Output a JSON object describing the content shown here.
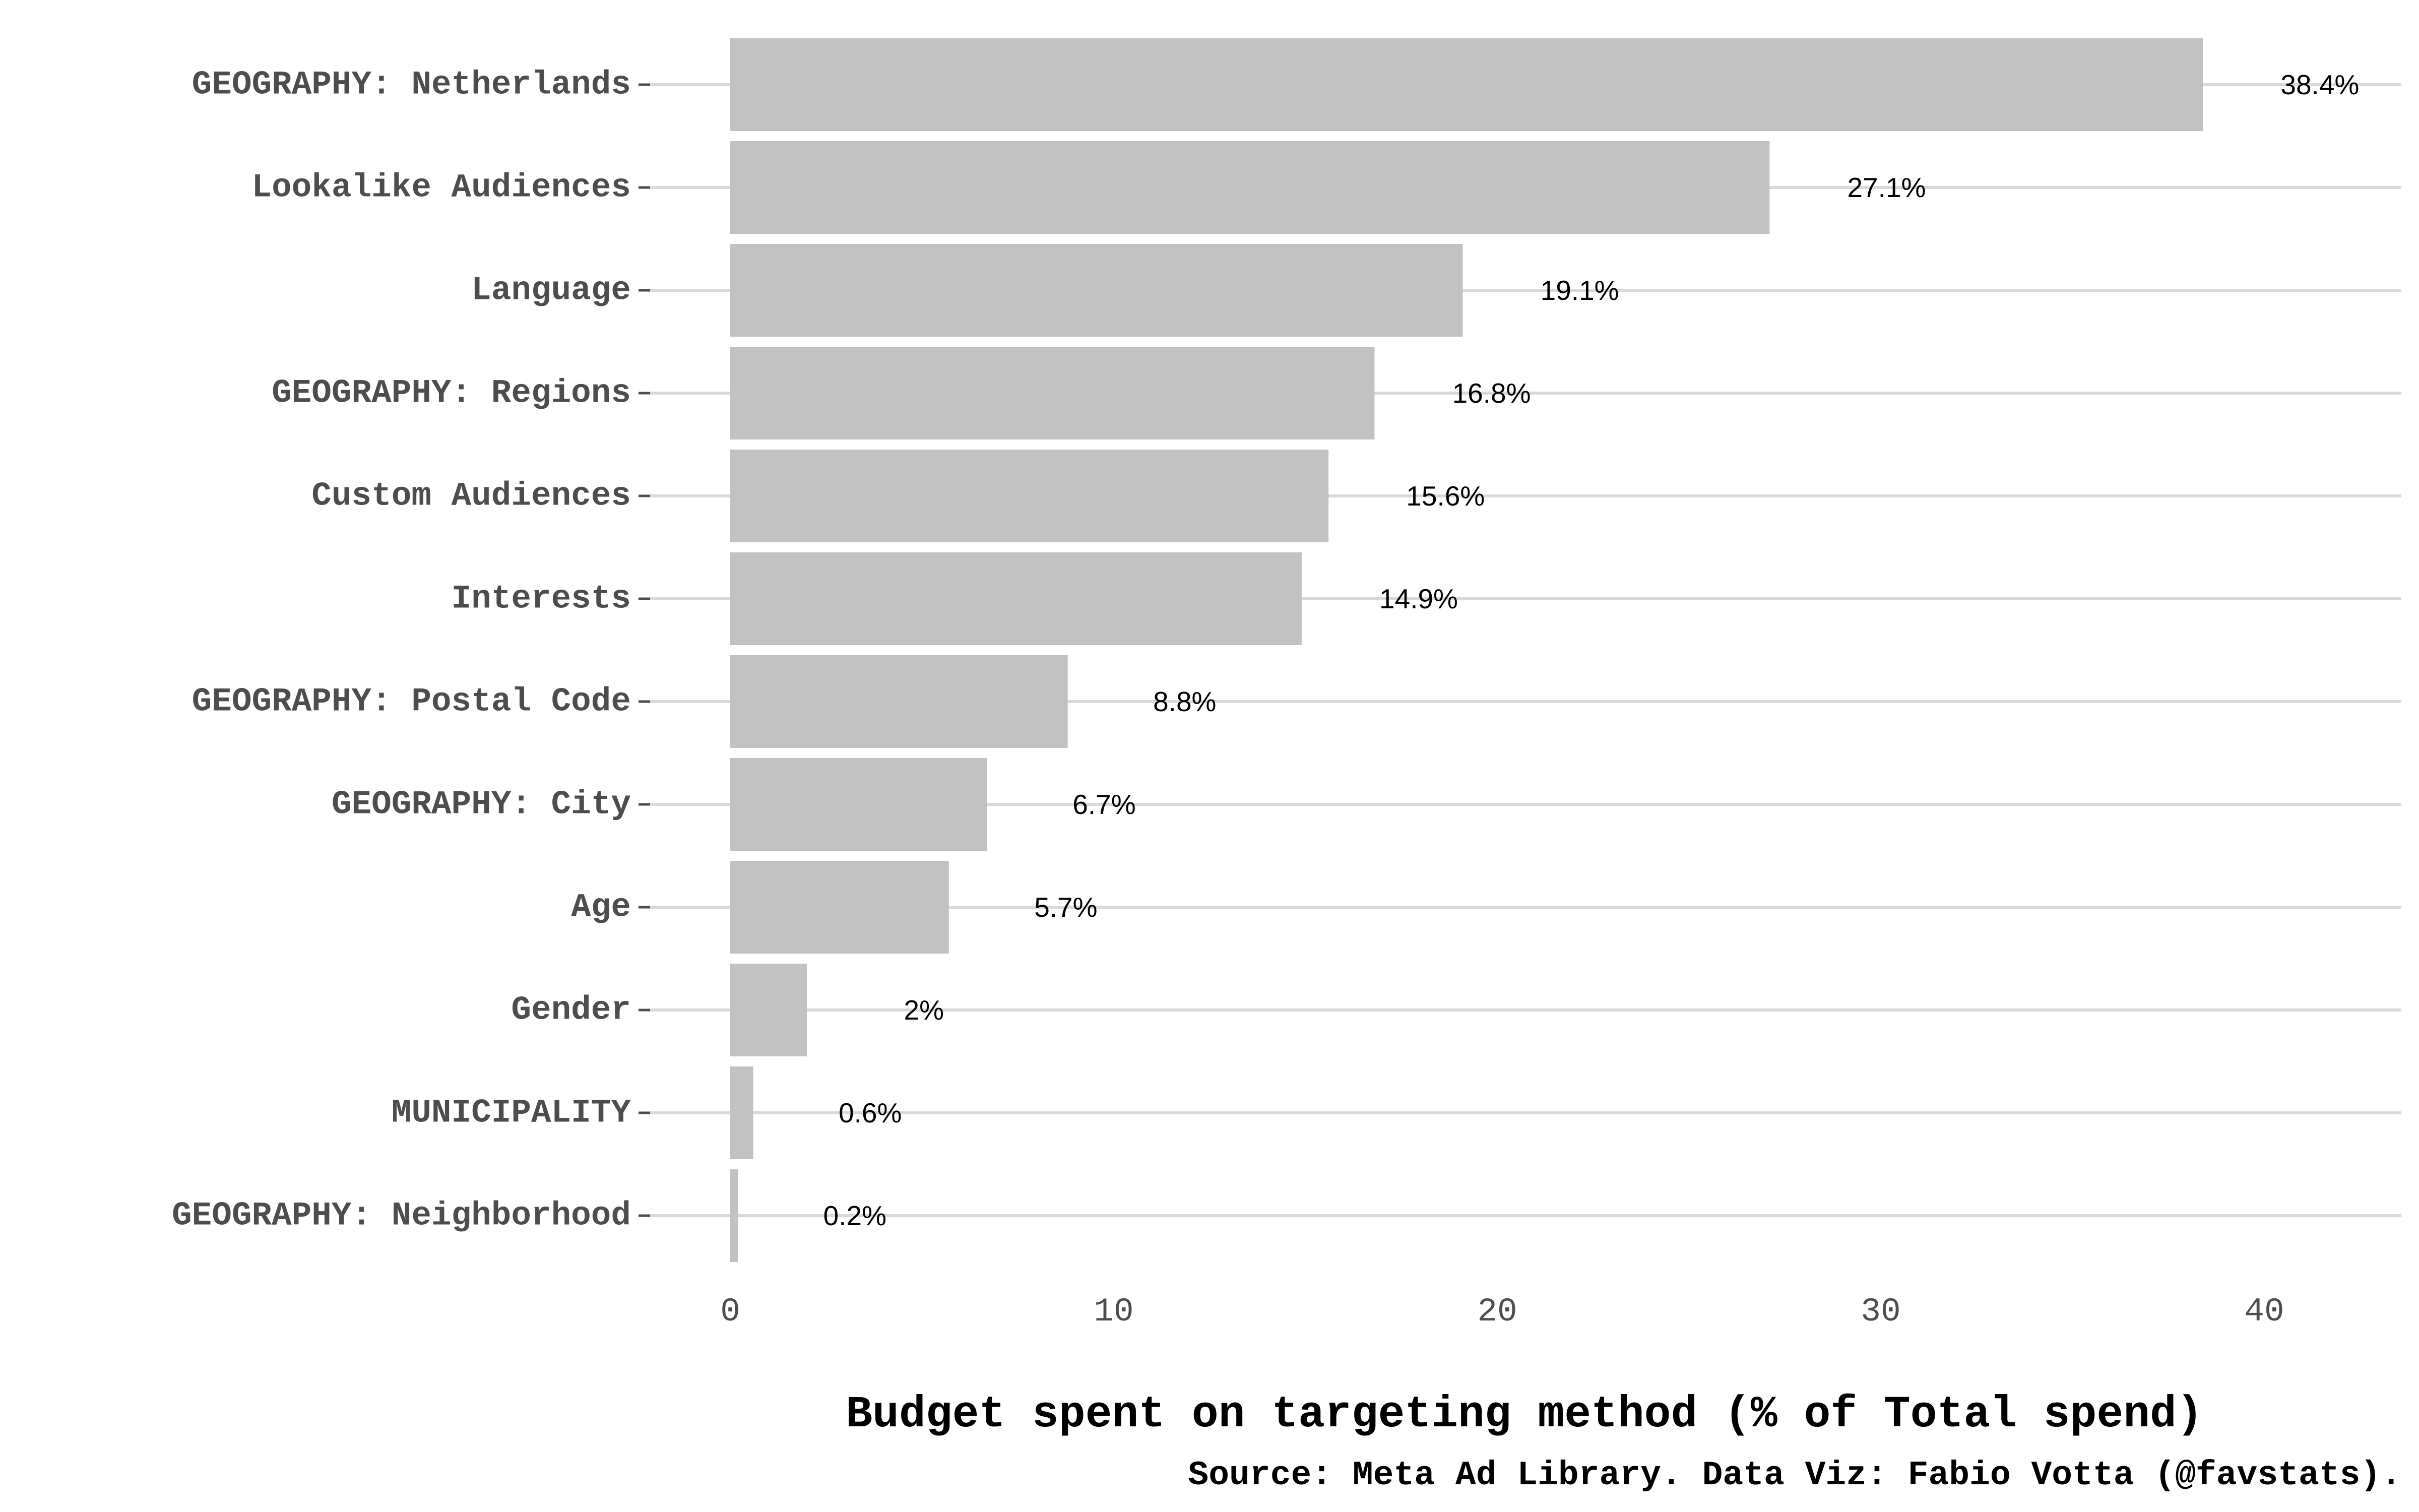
{
  "chart_data": {
    "type": "bar",
    "orientation": "horizontal",
    "categories": [
      "GEOGRAPHY: Netherlands",
      "Lookalike Audiences",
      "Language",
      "GEOGRAPHY: Regions",
      "Custom Audiences",
      "Interests",
      "GEOGRAPHY: Postal Code",
      "GEOGRAPHY: City",
      "Age",
      "Gender",
      "MUNICIPALITY",
      "GEOGRAPHY: Neighborhood"
    ],
    "values": [
      38.4,
      27.1,
      19.1,
      16.8,
      15.6,
      14.9,
      8.8,
      6.7,
      5.7,
      2,
      0.6,
      0.2
    ],
    "value_labels": [
      "38.4%",
      "27.1%",
      "19.1%",
      "16.8%",
      "15.6%",
      "14.9%",
      "8.8%",
      "6.7%",
      "5.7%",
      "2%",
      "0.6%",
      "0.2%"
    ],
    "xticks": [
      0,
      10,
      20,
      30,
      40
    ],
    "xlim": [
      0,
      43.5
    ],
    "xlabel": "Budget spent on targeting method (% of Total spend)",
    "caption": "Source: Meta Ad Library. Data Viz: Fabio Votta (@favstats).",
    "grid": "horizontal-major",
    "legend": "none",
    "colors": {
      "bar": "#c2c2c2",
      "grid": "#d9d9d9",
      "axis_text": "#4d4d4d",
      "value_text": "#000000",
      "background": "#ffffff"
    }
  }
}
